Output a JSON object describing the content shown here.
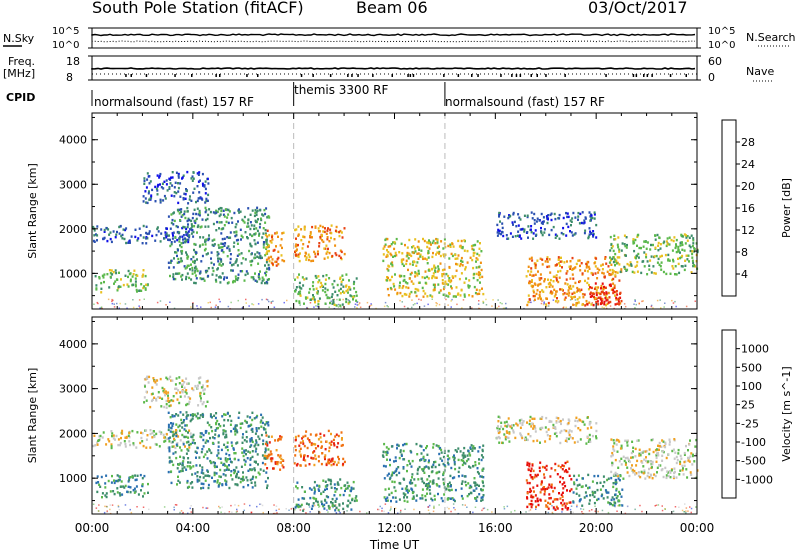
{
  "header": {
    "station": "South Pole Station (fitACF)",
    "beam": "Beam 06",
    "date": "03/Oct/2017"
  },
  "strip": {
    "nsky_label": "N.Sky",
    "nsky_ticks": [
      "10^5",
      "10^0"
    ],
    "nsearch_label": "N.Search",
    "nsearch_ticks": [
      "10^5",
      "10^0"
    ],
    "freq_label": "Freq.",
    "freq_unit": "[MHz]",
    "freq_ticks": [
      "18",
      "8"
    ],
    "nave_label": "Nave",
    "nave_ticks": [
      "60",
      "0"
    ],
    "cpid_label": "CPID",
    "modes": [
      "normalsound (fast) 157 RF",
      "themis 3300 RF",
      "normalsound (fast) 157 RF"
    ]
  },
  "chart_data": [
    {
      "type": "heatmap",
      "title": "",
      "xlabel": "Time UT",
      "ylabel": "Slant Range [km]",
      "x_ticks": [
        "00:00",
        "04:00",
        "08:00",
        "12:00",
        "16:00",
        "20:00",
        "00:00"
      ],
      "y_ticks": [
        "1000",
        "2000",
        "3000",
        "4000"
      ],
      "xlim_hours": [
        0,
        24
      ],
      "ylim_km": [
        200,
        4600
      ],
      "mode_boundaries_ut": [
        "08:00",
        "14:00"
      ],
      "colorbar": {
        "label": "Power [dB]",
        "ticks": [
          "4",
          "8",
          "12",
          "16",
          "20",
          "24",
          "28"
        ],
        "colors": [
          "#1010e8",
          "#2a50b0",
          "#3c8c6a",
          "#5ab84a",
          "#e8c020",
          "#f09010",
          "#e84010",
          "#e81010"
        ]
      },
      "echo_regions": [
        {
          "t0": 0.1,
          "t1": 2.2,
          "r0": 600,
          "r1": 1100,
          "level": 3
        },
        {
          "t0": 0.0,
          "t1": 4.0,
          "r0": 1700,
          "r1": 2100,
          "level": 1
        },
        {
          "t0": 2.0,
          "t1": 4.6,
          "r0": 2600,
          "r1": 3300,
          "level": 1
        },
        {
          "t0": 3.0,
          "t1": 7.0,
          "r0": 800,
          "r1": 2500,
          "level": 2
        },
        {
          "t0": 6.8,
          "t1": 7.6,
          "r0": 1200,
          "r1": 2000,
          "level": 5
        },
        {
          "t0": 8.0,
          "t1": 10.0,
          "r0": 1300,
          "r1": 2100,
          "level": 5
        },
        {
          "t0": 8.0,
          "t1": 10.5,
          "r0": 300,
          "r1": 1000,
          "level": 3
        },
        {
          "t0": 11.5,
          "t1": 15.5,
          "r0": 500,
          "r1": 1800,
          "level": 4
        },
        {
          "t0": 16.0,
          "t1": 20.0,
          "r0": 1800,
          "r1": 2400,
          "level": 1
        },
        {
          "t0": 17.2,
          "t1": 21.0,
          "r0": 300,
          "r1": 1400,
          "level": 5
        },
        {
          "t0": 19.5,
          "t1": 21.0,
          "r0": 300,
          "r1": 800,
          "level": 7
        },
        {
          "t0": 20.5,
          "t1": 24.0,
          "r0": 1000,
          "r1": 1900,
          "level": 3
        }
      ]
    },
    {
      "type": "heatmap",
      "title": "",
      "xlabel": "Time UT",
      "ylabel": "Slant Range [km]",
      "x_ticks": [
        "00:00",
        "04:00",
        "08:00",
        "12:00",
        "16:00",
        "20:00",
        "00:00"
      ],
      "y_ticks": [
        "1000",
        "2000",
        "3000",
        "4000"
      ],
      "xlim_hours": [
        0,
        24
      ],
      "ylim_km": [
        200,
        4600
      ],
      "mode_boundaries_ut": [
        "08:00",
        "14:00"
      ],
      "colorbar": {
        "label": "Velocity [m s^-1]",
        "ticks": [
          "1000",
          "500",
          "100",
          "25",
          "-25",
          "-100",
          "-500",
          "-1000"
        ],
        "colors": [
          "#1030d0",
          "#2a70b0",
          "#3c8c6a",
          "#5ab84a",
          "#c8c8c8",
          "#f0a020",
          "#f07010",
          "#e82010",
          "#e80808"
        ]
      },
      "echo_regions": [
        {
          "t0": 0.1,
          "t1": 2.2,
          "r0": 600,
          "r1": 1100,
          "level": 2
        },
        {
          "t0": 0.0,
          "t1": 4.0,
          "r0": 1700,
          "r1": 2100,
          "level": 4
        },
        {
          "t0": 2.0,
          "t1": 4.6,
          "r0": 2600,
          "r1": 3300,
          "level": 4
        },
        {
          "t0": 3.0,
          "t1": 7.0,
          "r0": 800,
          "r1": 2500,
          "level": 2
        },
        {
          "t0": 6.8,
          "t1": 7.6,
          "r0": 1200,
          "r1": 2000,
          "level": 6
        },
        {
          "t0": 8.0,
          "t1": 10.0,
          "r0": 1300,
          "r1": 2100,
          "level": 6
        },
        {
          "t0": 8.0,
          "t1": 10.5,
          "r0": 300,
          "r1": 1000,
          "level": 2
        },
        {
          "t0": 11.5,
          "t1": 15.5,
          "r0": 500,
          "r1": 1800,
          "level": 2
        },
        {
          "t0": 16.0,
          "t1": 20.0,
          "r0": 1800,
          "r1": 2400,
          "level": 4
        },
        {
          "t0": 17.2,
          "t1": 19.0,
          "r0": 300,
          "r1": 1400,
          "level": 7
        },
        {
          "t0": 19.0,
          "t1": 21.0,
          "r0": 400,
          "r1": 1100,
          "level": 2
        },
        {
          "t0": 20.5,
          "t1": 24.0,
          "r0": 1000,
          "r1": 1900,
          "level": 4
        }
      ]
    }
  ]
}
